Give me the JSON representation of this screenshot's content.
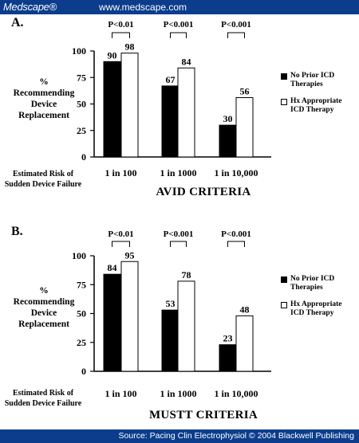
{
  "header": {
    "brand": "Medscape®",
    "site": "www.medscape.com"
  },
  "footer": {
    "source": "Source: Pacing Clin Electrophysiol © 2004 Blackwell Publishing"
  },
  "ylabel_lines": [
    "%",
    "Recommending",
    "Device",
    "Replacement"
  ],
  "xlabel_lines": [
    "Estimated Risk of",
    "Sudden Device Failure"
  ],
  "legend": [
    {
      "label_lines": [
        "No Prior ICD",
        "Therapies"
      ],
      "color": "#000000"
    },
    {
      "label_lines": [
        "Hx Appropriate",
        "ICD Therapy"
      ],
      "color": "#ffffff"
    }
  ],
  "chart_data": [
    {
      "type": "bar",
      "panel": "A.",
      "title": "AVID CRITERIA",
      "categories": [
        "1 in 100",
        "1 in 1000",
        "1 in 10,000"
      ],
      "series": [
        {
          "name": "No Prior ICD Therapies",
          "values": [
            90,
            67,
            30
          ],
          "color": "#000000"
        },
        {
          "name": "Hx Appropriate ICD Therapy",
          "values": [
            98,
            84,
            56
          ],
          "color": "#ffffff"
        }
      ],
      "significance": [
        "P<0.01",
        "P<0.001",
        "P<0.001"
      ],
      "ylim": [
        0,
        100
      ],
      "yticks": [
        0,
        25,
        50,
        75,
        100
      ]
    },
    {
      "type": "bar",
      "panel": "B.",
      "title": "MUSTT CRITERIA",
      "categories": [
        "1 in 100",
        "1 in 1000",
        "1 in 10,000"
      ],
      "series": [
        {
          "name": "No Prior ICD Therapies",
          "values": [
            84,
            53,
            23
          ],
          "color": "#000000"
        },
        {
          "name": "Hx Appropriate ICD Therapy",
          "values": [
            95,
            78,
            48
          ],
          "color": "#ffffff"
        }
      ],
      "significance": [
        "P<0.01",
        "P<0.001",
        "P<0.001"
      ],
      "ylim": [
        0,
        100
      ],
      "yticks": [
        0,
        25,
        50,
        75,
        100
      ]
    }
  ]
}
